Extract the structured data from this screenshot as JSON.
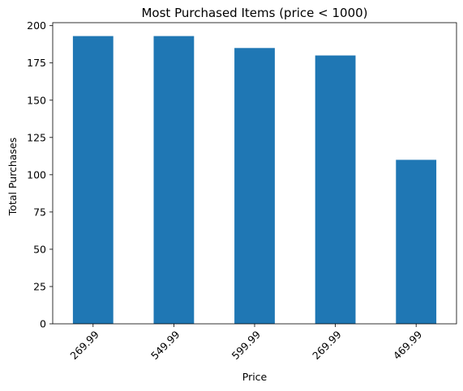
{
  "chart_data": {
    "type": "bar",
    "title": "Most Purchased Items (price < 1000)",
    "xlabel": "Price",
    "ylabel": "Total Purchases",
    "categories": [
      "269.99",
      "549.99",
      "599.99",
      "269.99",
      "469.99"
    ],
    "values": [
      193,
      193,
      185,
      180,
      110
    ],
    "ylim": [
      0,
      202
    ],
    "yticks": [
      0,
      25,
      50,
      75,
      100,
      125,
      150,
      175,
      200
    ],
    "xtick_rotation_deg": 45,
    "grid": false,
    "legend": "none",
    "bar_color": "#1f77b4"
  }
}
